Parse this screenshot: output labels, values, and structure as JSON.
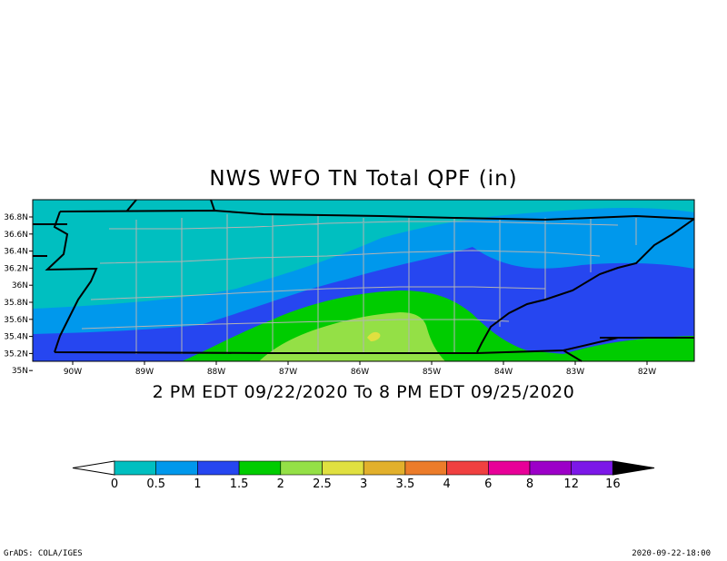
{
  "title": "NWS WFO TN Total QPF (in)",
  "subtitle": "2 PM EDT 09/22/2020 To 8 PM EDT 09/25/2020",
  "footer": {
    "left": "GrADS: COLA/IGES",
    "right": "2020-09-22-18:00"
  },
  "axes": {
    "lon_labels": [
      "90W",
      "89W",
      "88W",
      "87W",
      "86W",
      "85W",
      "84W",
      "83W",
      "82W"
    ],
    "lat_labels": [
      "36.8N",
      "36.6N",
      "36.4N",
      "36.2N",
      "36N",
      "35.8N",
      "35.6N",
      "35.4N",
      "35.2N",
      "35N"
    ]
  },
  "colorbar": {
    "labels": [
      "0",
      "0.5",
      "1",
      "1.5",
      "2",
      "2.5",
      "3",
      "3.5",
      "4",
      "6",
      "8",
      "12",
      "16"
    ],
    "colors": [
      "#00bfc0",
      "#0098ec",
      "#2646f0",
      "#00cc00",
      "#94e046",
      "#e0e040",
      "#e2b02c",
      "#ec7c2a",
      "#f04040",
      "#e80098",
      "#9c00c8",
      "#7c18e8"
    ],
    "below_color": "#ffffff",
    "above_color": "#000000"
  },
  "map_colors": {
    "lt05": "#00bfc0",
    "05_1": "#0098ec",
    "1_15": "#2646f0",
    "15_2": "#00cc00",
    "2_25": "#94e046",
    "25_3": "#e0e040",
    "borders": "#000000",
    "counties": "#b4b4b4"
  }
}
